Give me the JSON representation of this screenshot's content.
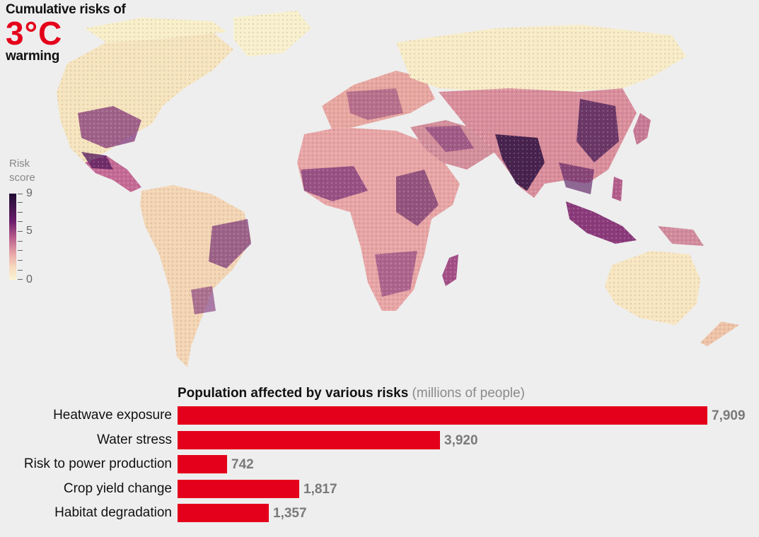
{
  "title": {
    "line1": "Cumulative risks of",
    "highlight": "3°C",
    "line2": "warming",
    "highlight_color": "#e4001b"
  },
  "map": {
    "type": "choropleth",
    "legend": {
      "title_line1": "Risk",
      "title_line2": "score",
      "ticks": [
        "9",
        "5",
        "0"
      ],
      "range": [
        0,
        9
      ],
      "color_scale": [
        "#fbf4d4",
        "#f6d9bd",
        "#e8a7a8",
        "#b5598a",
        "#6b1d6b",
        "#1f0b33"
      ]
    },
    "land_color": "#f3d5b3",
    "ocean_color": "#eeeeee"
  },
  "chart_data": {
    "type": "bar",
    "orientation": "horizontal",
    "title": "Population affected by various risks",
    "unit": "(millions of people)",
    "categories": [
      "Heatwave exposure",
      "Water stress",
      "Risk to power production",
      "Crop yield change",
      "Habitat degradation"
    ],
    "values": [
      7909,
      3920,
      742,
      1817,
      1357
    ],
    "value_labels": [
      "7,909",
      "3,920",
      "742",
      "1,817",
      "1,357"
    ],
    "xlim": [
      0,
      7909
    ],
    "bar_color": "#e4001b",
    "value_color": "#7a7a7a"
  }
}
